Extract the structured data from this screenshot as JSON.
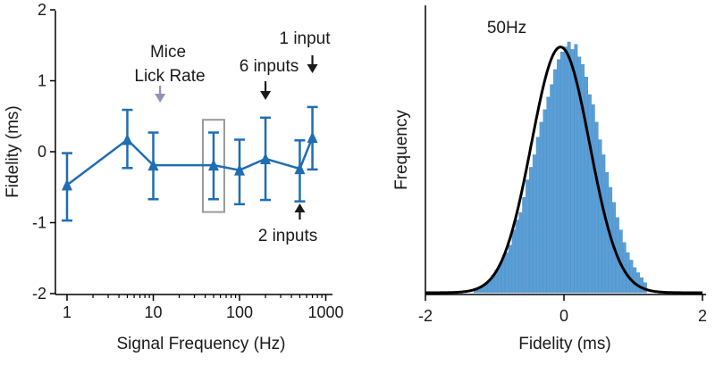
{
  "colors": {
    "series": "#1f6db5",
    "hist_fill": "#5a9fd6",
    "hist_edge": "#3f86c4",
    "fit": "#000000",
    "marker_mice": "#8e93b8",
    "box": "#9a9a9a",
    "text": "#1a1a1a"
  },
  "chart_data": [
    {
      "type": "line",
      "xscale": "log",
      "xlabel": "Signal Frequency (Hz)",
      "ylabel": "Fidelity (ms)",
      "xlim": [
        0.8,
        1000
      ],
      "ylim": [
        -2,
        2
      ],
      "xticks": [
        1,
        10,
        100,
        1000
      ],
      "xtick_labels": [
        "1",
        "10",
        "100",
        "1000"
      ],
      "yticks": [
        2,
        1,
        0,
        -1,
        -2
      ],
      "ytick_labels": [
        "2",
        "1",
        "0",
        "-1",
        "-2"
      ],
      "series": [
        {
          "name": "fidelity",
          "marker": "triangle",
          "x": [
            1,
            5,
            10,
            50,
            100,
            200,
            500,
            700
          ],
          "y": [
            -0.47,
            0.17,
            -0.19,
            -0.19,
            -0.26,
            -0.1,
            -0.24,
            0.2
          ],
          "err_low": [
            0.5,
            0.4,
            0.48,
            0.48,
            0.48,
            0.58,
            0.46,
            0.45
          ],
          "err_high": [
            0.45,
            0.42,
            0.46,
            0.46,
            0.43,
            0.58,
            0.4,
            0.43
          ]
        }
      ],
      "annotations": [
        {
          "lines": [
            "Mice",
            "Lick Rate"
          ],
          "arrow": "down",
          "x": 12,
          "style": "mice"
        },
        {
          "lines": [
            "6 inputs"
          ],
          "arrow": "down",
          "x": 200
        },
        {
          "lines": [
            "1 input"
          ],
          "arrow": "down",
          "x": 700
        },
        {
          "lines": [
            "2 inputs"
          ],
          "arrow": "up",
          "x": 500
        }
      ],
      "highlight": {
        "x": 50,
        "ymin": -0.85,
        "ymax": 0.45
      }
    },
    {
      "type": "histogram",
      "title": "50Hz",
      "xlabel": "Fidelity (ms)",
      "ylabel": "Frequency",
      "xlim": [
        -2,
        2
      ],
      "xticks": [
        -2,
        0,
        2
      ],
      "xtick_labels": [
        "-2",
        "0",
        "2"
      ],
      "bin_width": 0.05,
      "bin_start": -1.3,
      "counts": [
        1,
        2,
        3,
        4,
        5,
        7,
        9,
        11,
        14,
        16,
        19,
        25,
        29,
        32,
        38,
        45,
        50,
        55,
        62,
        68,
        73,
        78,
        83,
        89,
        93,
        96,
        98,
        100,
        97,
        99,
        94,
        91,
        86,
        79,
        75,
        68,
        61,
        55,
        48,
        42,
        36,
        30,
        25,
        20,
        16,
        13,
        10,
        8,
        6,
        4
      ],
      "fit": {
        "type": "gaussian",
        "mean": -0.05,
        "sd": 0.42,
        "peak": 98
      }
    }
  ]
}
